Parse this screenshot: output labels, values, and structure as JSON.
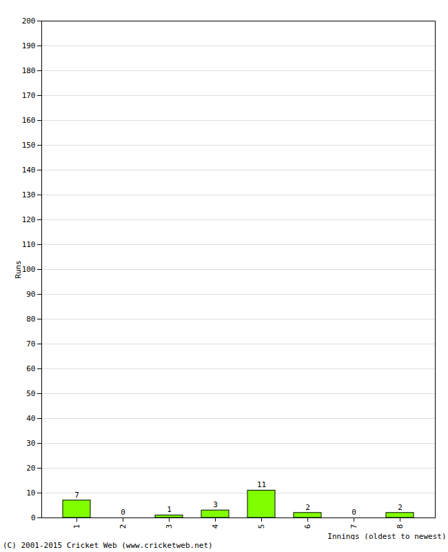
{
  "chart_data": {
    "type": "bar",
    "x_label": "Innings (oldest to newest)",
    "y_label": "Runs",
    "caption": "(C) 2001-2015 Cricket Web (www.cricketweb.net)",
    "categories": [
      "1",
      "2",
      "3",
      "4",
      "5",
      "6",
      "7",
      "8"
    ],
    "values": [
      7,
      0,
      1,
      3,
      11,
      2,
      0,
      2
    ],
    "color": "#80ff00",
    "ylim": [
      0,
      200
    ],
    "yticks": [
      0,
      10,
      20,
      30,
      40,
      50,
      60,
      70,
      80,
      90,
      100,
      110,
      120,
      130,
      140,
      150,
      160,
      170,
      180,
      190,
      200
    ],
    "grid": true,
    "data_labels": true
  }
}
